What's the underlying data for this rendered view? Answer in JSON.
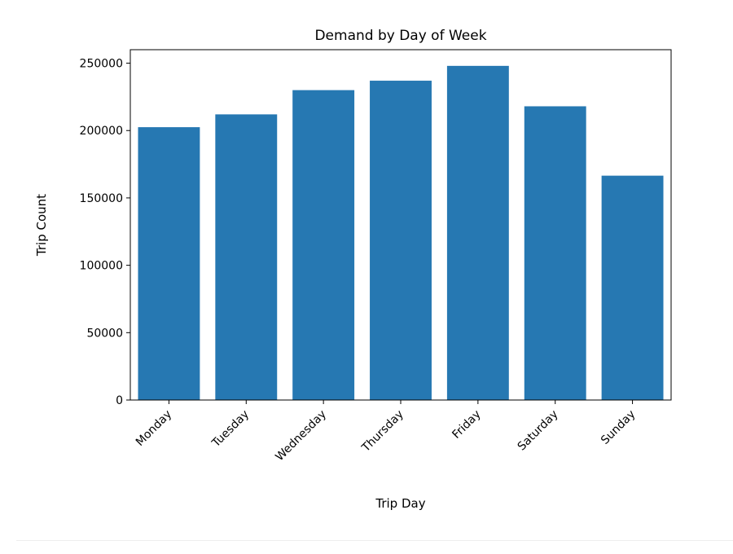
{
  "chart_data": {
    "type": "bar",
    "title": "Demand by Day of Week",
    "xlabel": "Trip Day",
    "ylabel": "Trip Count",
    "categories": [
      "Monday",
      "Tuesday",
      "Wednesday",
      "Thursday",
      "Friday",
      "Saturday",
      "Sunday"
    ],
    "values": [
      202500,
      212000,
      230000,
      237000,
      248000,
      218000,
      166500
    ],
    "ylim": [
      0,
      260000
    ],
    "yticks": [
      0,
      50000,
      100000,
      150000,
      200000,
      250000
    ],
    "ytick_labels": [
      "0",
      "50000",
      "100000",
      "150000",
      "200000",
      "250000"
    ],
    "bar_color": "#2678b2",
    "grid": false,
    "legend": false
  }
}
